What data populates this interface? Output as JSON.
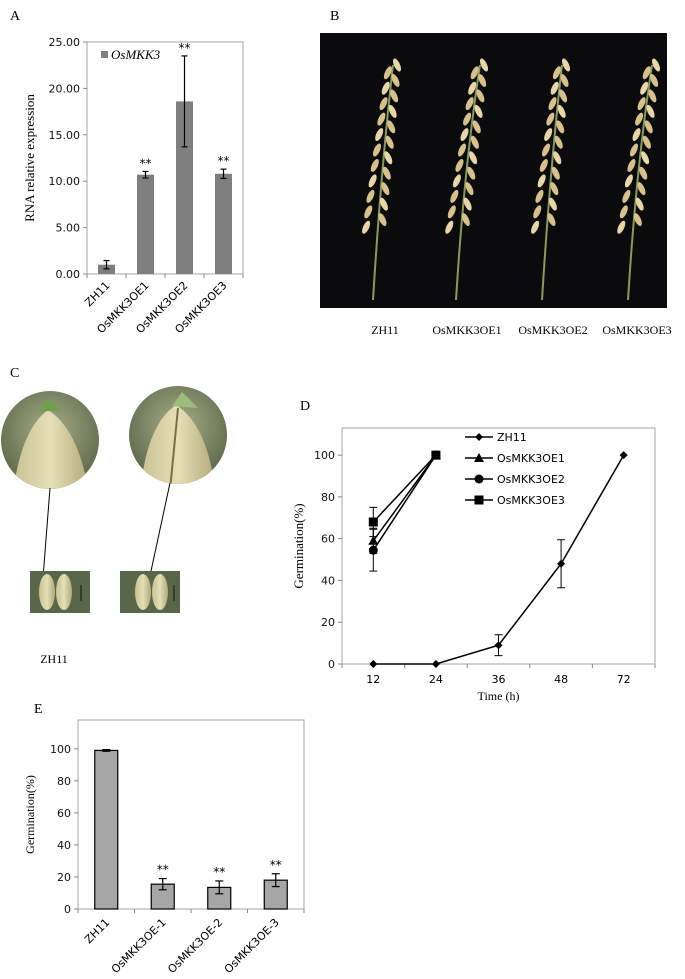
{
  "panel_labels": {
    "a": "A",
    "b": "B",
    "c": "C",
    "d": "D",
    "e": "E"
  },
  "panel_b": {
    "photo": "rice panicles on black background",
    "labels": [
      "ZH11",
      "OsMKK3OE1",
      "OsMKK3OE2",
      "OsMKK3OE3"
    ]
  },
  "panel_c": {
    "photo": "magnified seed tips and grains",
    "label": "ZH11"
  },
  "colors": {
    "bar_a": "#7f7f7f",
    "bar_e": "#a6a6a6",
    "axis": "#a6a6a6",
    "line": "#000000",
    "photo_bg": "#0b0b0d"
  },
  "chart_data": [
    {
      "id": "A",
      "type": "bar",
      "title": "",
      "ylabel": "RNA relative expression",
      "xlabel": "",
      "ylim": [
        0,
        25
      ],
      "yticks": [
        "0.00",
        "5.00",
        "10.00",
        "15.00",
        "20.00",
        "25.00"
      ],
      "categories": [
        "ZH11",
        "OsMKK3OE1",
        "OsMKK3OE2",
        "OsMKK3OE3"
      ],
      "series": [
        {
          "name": "OsMKK3",
          "values": [
            1.0,
            10.7,
            18.6,
            10.8
          ],
          "errors": [
            0.45,
            0.35,
            4.9,
            0.5
          ]
        }
      ],
      "annotations": [
        "",
        "**",
        "**",
        "**"
      ],
      "legend": "top-left",
      "grid": false
    },
    {
      "id": "D",
      "type": "line",
      "ylabel": "Germination(%)",
      "xlabel": "Time (h)",
      "ylim": [
        0,
        113
      ],
      "yticks": [
        "0",
        "20",
        "40",
        "60",
        "80",
        "100"
      ],
      "categories": [
        "12",
        "24",
        "36",
        "48",
        "72"
      ],
      "series": [
        {
          "name": "ZH11",
          "marker": "diamond",
          "values": [
            0,
            0,
            9,
            48,
            100
          ],
          "errors": [
            0,
            0,
            5,
            11.5,
            0
          ]
        },
        {
          "name": "OsMKK3OE1",
          "marker": "triangle",
          "values": [
            59,
            100,
            null,
            null,
            null
          ],
          "errors": [
            6,
            0,
            0,
            0,
            0
          ]
        },
        {
          "name": "OsMKK3OE2",
          "marker": "circle",
          "values": [
            54.5,
            100,
            null,
            null,
            null
          ],
          "errors": [
            10,
            0,
            0,
            0,
            0
          ]
        },
        {
          "name": "OsMKK3OE3",
          "marker": "square",
          "values": [
            68,
            100,
            null,
            null,
            null
          ],
          "errors": [
            7,
            0,
            0,
            0,
            0
          ]
        }
      ],
      "legend": "top-center",
      "grid": false
    },
    {
      "id": "E",
      "type": "bar",
      "ylabel": "Germination(%)",
      "xlabel": "",
      "ylim": [
        0,
        118
      ],
      "yticks": [
        "0",
        "20",
        "40",
        "60",
        "80",
        "100"
      ],
      "categories": [
        "ZH11",
        "OsMKK3OE-1",
        "OsMKK3OE-2",
        "OsMKK3OE-3"
      ],
      "series": [
        {
          "values": [
            99,
            15.5,
            13.5,
            18
          ],
          "errors": [
            0.5,
            3.5,
            4,
            4
          ]
        }
      ],
      "annotations": [
        "",
        "**",
        "**",
        "**"
      ],
      "grid": false
    }
  ]
}
